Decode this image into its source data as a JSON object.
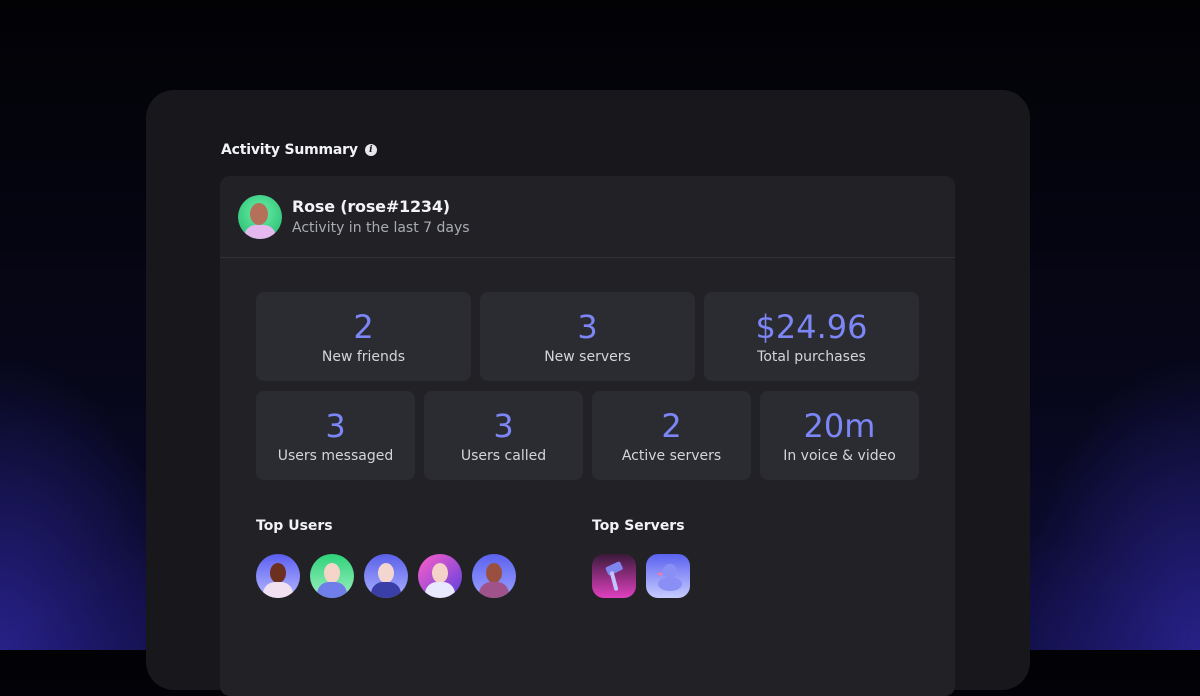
{
  "section_title": "Activity Summary",
  "user": {
    "name": "Rose (rose#1234)",
    "subtitle": "Activity in the last 7 days"
  },
  "stats_row1": [
    {
      "value": "2",
      "label": "New friends"
    },
    {
      "value": "3",
      "label": "New servers"
    },
    {
      "value": "$24.96",
      "label": "Total purchases"
    }
  ],
  "stats_row2": [
    {
      "value": "3",
      "label": "Users messaged"
    },
    {
      "value": "3",
      "label": "Users called"
    },
    {
      "value": "2",
      "label": "Active servers"
    },
    {
      "value": "20m",
      "label": "In voice & video"
    }
  ],
  "top_users": {
    "title": "Top Users",
    "count": 5
  },
  "top_servers": {
    "title": "Top Servers",
    "icons": [
      "hammer-icon",
      "duck-icon"
    ]
  },
  "colors": {
    "accent": "#7c86f7",
    "panel": "#18181c",
    "card": "#222226",
    "tile": "#2b2c31"
  }
}
